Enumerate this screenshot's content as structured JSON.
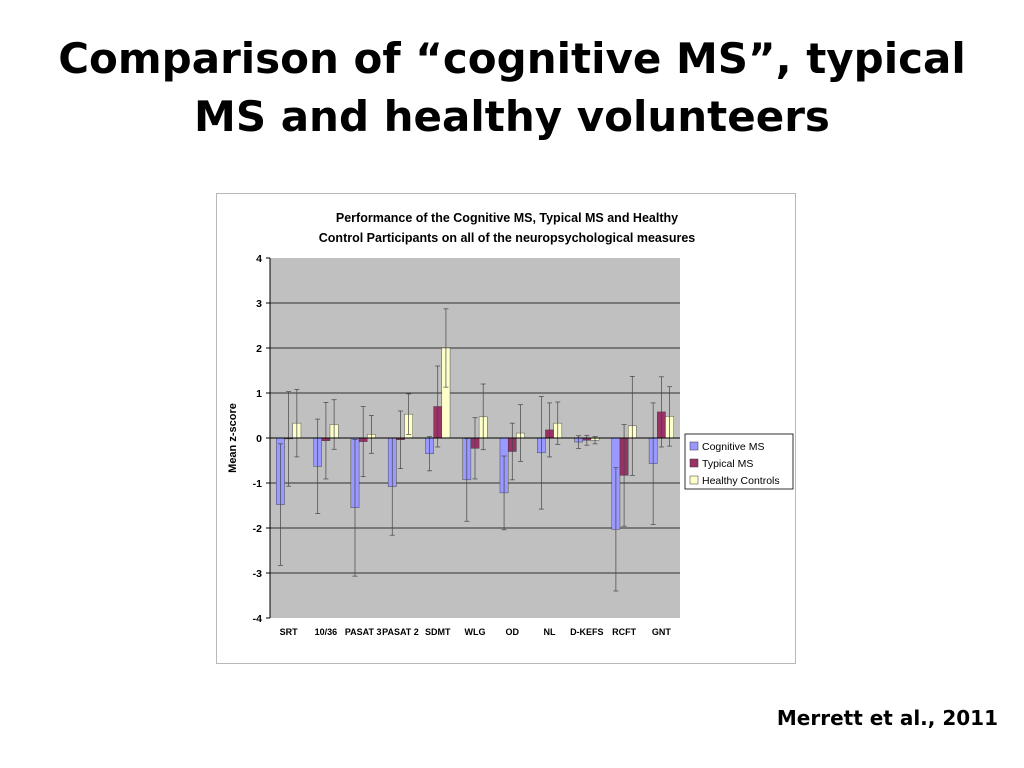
{
  "slide": {
    "title_line1": "Comparison of “cognitive MS”, typical",
    "title_line2": "MS and healthy volunteers",
    "citation": "Merrett et al., 2011"
  },
  "chart_data": {
    "type": "bar",
    "title": "Performance of the Cognitive MS, Typical MS and Healthy Control Participants on all of the neuropsychological measures",
    "title_lines": [
      "Performance of the Cognitive MS, Typical MS and Healthy",
      "Control Participants on all of the neuropsychological measures"
    ],
    "xlabel": "",
    "ylabel": "Mean z-score",
    "ylim": [
      -4,
      4
    ],
    "yticks": [
      4,
      3,
      2,
      1,
      0,
      -1,
      -2,
      -3,
      -4
    ],
    "grid": true,
    "legend_position": "right",
    "categories": [
      "SRT",
      "10/36",
      "PASAT 3",
      "PASAT 2",
      "SDMT",
      "WLG",
      "OD",
      "NL",
      "D-KEFS",
      "RCFT",
      "GNT"
    ],
    "series": [
      {
        "name": "Cognitive MS",
        "color": "#9999ff",
        "values": [
          -1.48,
          -0.63,
          -1.55,
          -1.08,
          -0.35,
          -0.93,
          -1.22,
          -0.33,
          -0.09,
          -2.03,
          -0.57
        ],
        "errors": [
          1.35,
          1.05,
          1.52,
          1.08,
          0.38,
          0.92,
          0.82,
          1.25,
          0.14,
          1.37,
          1.35
        ]
      },
      {
        "name": "Typical MS",
        "color": "#993366",
        "values": [
          -0.02,
          -0.06,
          -0.08,
          -0.04,
          0.7,
          -0.23,
          -0.3,
          0.18,
          -0.05,
          -0.83,
          0.58
        ],
        "errors": [
          1.05,
          0.85,
          0.78,
          0.64,
          0.9,
          0.68,
          0.63,
          0.6,
          0.11,
          1.13,
          0.78
        ]
      },
      {
        "name": "Healthy Controls",
        "color": "#ffffcc",
        "values": [
          0.33,
          0.3,
          0.08,
          0.53,
          2.0,
          0.47,
          0.11,
          0.33,
          -0.05,
          0.27,
          0.48
        ],
        "errors": [
          0.75,
          0.55,
          0.42,
          0.45,
          0.87,
          0.73,
          0.63,
          0.47,
          0.08,
          1.1,
          0.66
        ]
      }
    ]
  }
}
